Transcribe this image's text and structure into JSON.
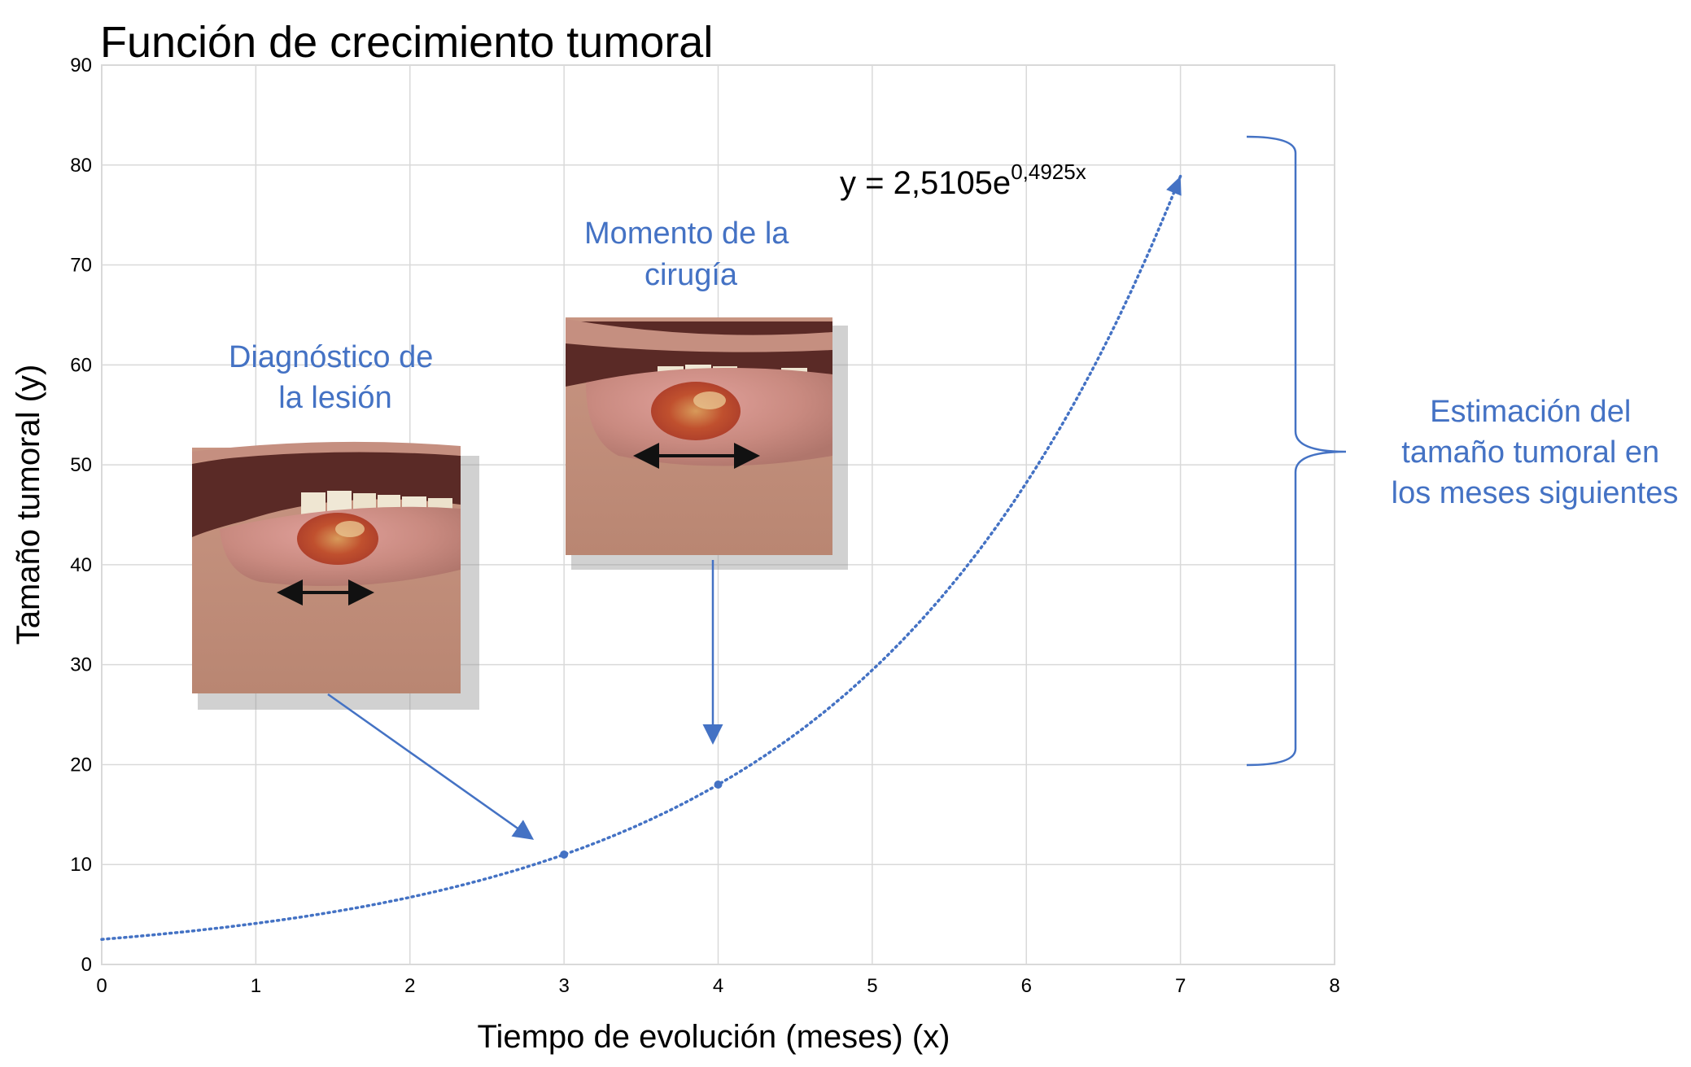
{
  "chart_data": {
    "type": "line",
    "title": "Función de crecimiento tumoral",
    "xlabel": "Tiempo de evolución (meses) (x)",
    "ylabel": "Tamaño tumoral (y)",
    "xlim": [
      0,
      8
    ],
    "ylim": [
      0,
      90
    ],
    "x_ticks": [
      "0",
      "1",
      "2",
      "3",
      "4",
      "5",
      "6",
      "7",
      "8"
    ],
    "y_ticks": [
      "0",
      "10",
      "20",
      "30",
      "40",
      "50",
      "60",
      "70",
      "80",
      "90"
    ],
    "grid": true,
    "trendline": {
      "type": "exponential",
      "a": 2.5105,
      "b": 0.4925,
      "x_range": [
        0,
        7
      ],
      "style": "dotted",
      "color": "#4472c4",
      "equation_label": {
        "base": "y = 2,5105e",
        "exponent": "0,4925x"
      }
    },
    "points": [
      {
        "x": 3,
        "y": 11
      },
      {
        "x": 4,
        "y": 18
      }
    ]
  },
  "annotations": {
    "diagnosis": {
      "lines": [
        "Diagnóstico de",
        "la lesión"
      ]
    },
    "surgery": {
      "lines": [
        "Momento de la",
        "cirugía"
      ]
    },
    "estimation": {
      "lines": [
        "Estimación del",
        "tamaño tumoral en",
        "los meses siguientes"
      ]
    }
  },
  "colors": {
    "accent": "#4472c4",
    "grid": "#d9d9d9"
  }
}
